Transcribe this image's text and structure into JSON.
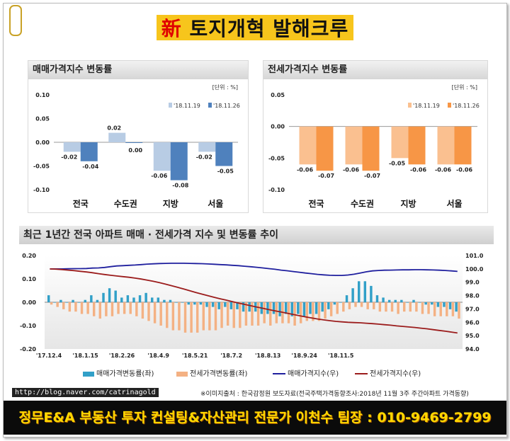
{
  "header": {
    "title_prefix": "新",
    "title_main": "토지개혁 발해크루"
  },
  "chart_data": [
    {
      "type": "bar",
      "title": "매매가격지수 변동률",
      "unit": "[단위 : %]",
      "categories": [
        "전국",
        "수도권",
        "지방",
        "서울"
      ],
      "series": [
        {
          "name": "'18.11.19",
          "values": [
            -0.02,
            0.02,
            -0.06,
            -0.02
          ],
          "color": "#b8cce4"
        },
        {
          "name": "'18.11.26",
          "values": [
            -0.04,
            0.0,
            -0.08,
            -0.05
          ],
          "color": "#4f81bd"
        }
      ],
      "value_labels": [
        [
          "-0.02",
          "0.02",
          "-0.06",
          "-0.02"
        ],
        [
          "-0.04",
          "0.00",
          "-0.08",
          "-0.05"
        ]
      ],
      "yticks": [
        "0.10",
        "0.05",
        "0.00",
        "-0.05",
        "-0.10"
      ],
      "ylim": [
        -0.1,
        0.1
      ]
    },
    {
      "type": "bar",
      "title": "전세가격지수 변동률",
      "unit": "[단위 : %]",
      "categories": [
        "전국",
        "수도권",
        "지방",
        "서울"
      ],
      "series": [
        {
          "name": "'18.11.19",
          "values": [
            -0.06,
            -0.06,
            -0.05,
            -0.06
          ],
          "color": "#fac090"
        },
        {
          "name": "'18.11.26",
          "values": [
            -0.07,
            -0.07,
            -0.06,
            -0.06
          ],
          "color": "#f79646"
        }
      ],
      "value_labels": [
        [
          "-0.06",
          "-0.06",
          "-0.05",
          "-0.06"
        ],
        [
          "-0.07",
          "-0.07",
          "-0.06",
          "-0.06"
        ]
      ],
      "yticks": [
        "0.05",
        "0.00",
        "-0.05",
        "-0.10"
      ],
      "ylim": [
        -0.1,
        0.05
      ]
    },
    {
      "type": "bar+line",
      "title": "최근 1년간 전국 아파트 매매 · 전세가격 지수 및 변동률 추이",
      "x_ticks": [
        "'17.12.4",
        "'18.1.15",
        "'18.2.26",
        "'18.4.9",
        "'18.5.21",
        "'18.7.2",
        "'18.8.13",
        "'18.9.24",
        "'18.11.5"
      ],
      "left_axis": {
        "ticks": [
          "0.20",
          "0.10",
          "0.00",
          "-0.10",
          "-0.20"
        ],
        "range": [
          -0.2,
          0.2
        ]
      },
      "right_axis": {
        "ticks": [
          "101.0",
          "100.0",
          "99.0",
          "98.0",
          "97.0",
          "96.0",
          "95.0",
          "94.0"
        ],
        "range": [
          94.0,
          101.0
        ]
      },
      "series": [
        {
          "name": "매매가격변동률(좌)",
          "axis": "left",
          "color": "#31a0c8",
          "values": [
            0.03,
            0.0,
            0.01,
            0.0,
            0.01,
            0.0,
            0.01,
            0.03,
            0.01,
            0.04,
            0.06,
            0.05,
            0.02,
            0.03,
            0.02,
            0.03,
            0.04,
            0.02,
            0.02,
            0.01,
            0.01,
            0.0,
            0.0,
            -0.01,
            -0.01,
            -0.01,
            -0.02,
            -0.02,
            -0.03,
            -0.02,
            -0.03,
            -0.03,
            -0.04,
            -0.04,
            -0.04,
            -0.05,
            -0.05,
            -0.05,
            -0.06,
            -0.05,
            -0.06,
            -0.05,
            -0.06,
            -0.05,
            -0.05,
            -0.04,
            -0.03,
            -0.01,
            0.0,
            0.03,
            0.06,
            0.09,
            0.09,
            0.07,
            0.03,
            0.02,
            0.01,
            0.01,
            0.01,
            0.0,
            0.01,
            0.0,
            -0.01,
            -0.01,
            -0.02,
            -0.02,
            -0.03,
            -0.04
          ]
        },
        {
          "name": "전세가격변동률(좌)",
          "axis": "left",
          "color": "#f4b183",
          "values": [
            -0.01,
            -0.02,
            -0.03,
            -0.04,
            -0.04,
            -0.05,
            -0.05,
            -0.06,
            -0.07,
            -0.06,
            -0.06,
            -0.05,
            -0.05,
            -0.05,
            -0.06,
            -0.07,
            -0.08,
            -0.09,
            -0.1,
            -0.11,
            -0.12,
            -0.12,
            -0.13,
            -0.13,
            -0.13,
            -0.12,
            -0.12,
            -0.12,
            -0.11,
            -0.1,
            -0.11,
            -0.11,
            -0.1,
            -0.1,
            -0.1,
            -0.09,
            -0.1,
            -0.09,
            -0.09,
            -0.09,
            -0.1,
            -0.09,
            -0.08,
            -0.08,
            -0.08,
            -0.07,
            -0.06,
            -0.05,
            -0.04,
            -0.03,
            -0.02,
            -0.02,
            -0.03,
            -0.03,
            -0.04,
            -0.04,
            -0.04,
            -0.05,
            -0.04,
            -0.04,
            -0.04,
            -0.05,
            -0.05,
            -0.06,
            -0.06,
            -0.06,
            -0.06,
            -0.07
          ]
        },
        {
          "name": "매매가격지수(우)",
          "axis": "right",
          "color": "#1f1f9e",
          "values": [
            100.0,
            100.0,
            100.0,
            100.01,
            100.02,
            100.02,
            100.03,
            100.06,
            100.07,
            100.11,
            100.17,
            100.22,
            100.24,
            100.27,
            100.29,
            100.32,
            100.36,
            100.38,
            100.4,
            100.41,
            100.42,
            100.42,
            100.42,
            100.41,
            100.4,
            100.39,
            100.37,
            100.35,
            100.32,
            100.3,
            100.27,
            100.24,
            100.2,
            100.16,
            100.12,
            100.07,
            100.02,
            99.97,
            99.91,
            99.86,
            99.8,
            99.75,
            99.69,
            99.64,
            99.59,
            99.55,
            99.52,
            99.51,
            99.51,
            99.54,
            99.6,
            99.69,
            99.78,
            99.85,
            99.88,
            99.9,
            99.91,
            99.92,
            99.93,
            99.93,
            99.94,
            99.94,
            99.93,
            99.92,
            99.9,
            99.88,
            99.85,
            99.81
          ]
        },
        {
          "name": "전세가격지수(우)",
          "axis": "right",
          "color": "#9b1c1c",
          "values": [
            100.0,
            99.98,
            99.95,
            99.91,
            99.87,
            99.82,
            99.77,
            99.71,
            99.64,
            99.58,
            99.52,
            99.47,
            99.42,
            99.37,
            99.31,
            99.24,
            99.16,
            99.07,
            98.97,
            98.86,
            98.74,
            98.62,
            98.49,
            98.36,
            98.23,
            98.11,
            97.99,
            97.87,
            97.76,
            97.66,
            97.55,
            97.44,
            97.34,
            97.24,
            97.14,
            97.05,
            96.95,
            96.86,
            96.77,
            96.68,
            96.58,
            96.49,
            96.41,
            96.33,
            96.25,
            96.18,
            96.12,
            96.07,
            96.03,
            96.0,
            95.98,
            95.96,
            95.93,
            95.9,
            95.86,
            95.82,
            95.78,
            95.73,
            95.69,
            95.65,
            95.61,
            95.56,
            95.51,
            95.45,
            95.39,
            95.33,
            95.27,
            95.2
          ]
        }
      ]
    }
  ],
  "footer": {
    "url": "http://blog.naver.com/catrinagold",
    "source": "※이미지출처 : 한국감정원 보도자료(전국주택가격동향조사:2018년 11월 3주 주간아파트 가격동향)",
    "banner": "정무E&A 부동산 투자 컨설팅&자산관리 전문가 이천수 팀장 : 010-9469-2799"
  }
}
